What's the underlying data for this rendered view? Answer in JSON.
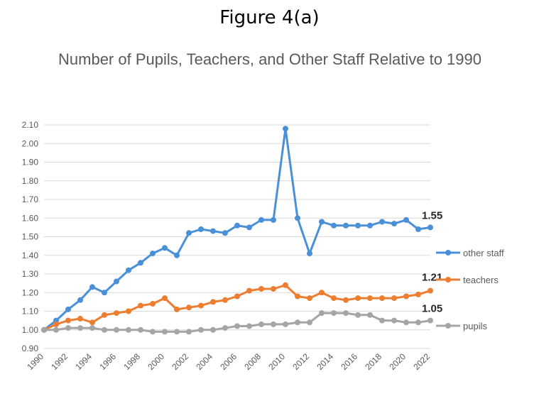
{
  "figure_label": "Figure 4(a)",
  "chart_data": {
    "type": "line",
    "title": "Number of Pupils, Teachers, and Other Staff Relative to 1990",
    "xlabel": "",
    "ylabel": "",
    "ylim": [
      0.9,
      2.1
    ],
    "y_ticks": [
      "0.90",
      "1.00",
      "1.10",
      "1.20",
      "1.30",
      "1.40",
      "1.50",
      "1.60",
      "1.70",
      "1.80",
      "1.90",
      "2.00",
      "2.10"
    ],
    "x": [
      1990,
      1991,
      1992,
      1993,
      1994,
      1995,
      1996,
      1997,
      1998,
      1999,
      2000,
      2001,
      2002,
      2003,
      2004,
      2005,
      2006,
      2007,
      2008,
      2009,
      2010,
      2011,
      2012,
      2013,
      2014,
      2015,
      2016,
      2017,
      2018,
      2019,
      2020,
      2021,
      2022
    ],
    "x_tick_labels": [
      "1990",
      "1992",
      "1994",
      "1996",
      "1998",
      "2000",
      "2002",
      "2004",
      "2006",
      "2008",
      "2010",
      "2012",
      "2014",
      "2016",
      "2018",
      "2020",
      "2022"
    ],
    "grid": true,
    "legend_position": "right",
    "series": [
      {
        "name": "other staff",
        "color": "#4a90d9",
        "end_label": "1.55",
        "values": [
          1.0,
          1.05,
          1.11,
          1.16,
          1.23,
          1.2,
          1.26,
          1.32,
          1.36,
          1.41,
          1.44,
          1.4,
          1.52,
          1.54,
          1.53,
          1.52,
          1.56,
          1.55,
          1.59,
          1.59,
          2.08,
          1.6,
          1.41,
          1.58,
          1.56,
          1.56,
          1.56,
          1.56,
          1.58,
          1.57,
          1.59,
          1.54,
          1.55
        ]
      },
      {
        "name": "teachers",
        "color": "#ed7d31",
        "end_label": "1.21",
        "values": [
          1.0,
          1.03,
          1.05,
          1.06,
          1.04,
          1.08,
          1.09,
          1.1,
          1.13,
          1.14,
          1.17,
          1.11,
          1.12,
          1.13,
          1.15,
          1.16,
          1.18,
          1.21,
          1.22,
          1.22,
          1.24,
          1.18,
          1.17,
          1.2,
          1.17,
          1.16,
          1.17,
          1.17,
          1.17,
          1.17,
          1.18,
          1.19,
          1.21
        ]
      },
      {
        "name": "pupils",
        "color": "#a5a5a5",
        "end_label": "1.05",
        "values": [
          1.0,
          1.0,
          1.01,
          1.01,
          1.01,
          1.0,
          1.0,
          1.0,
          1.0,
          0.99,
          0.99,
          0.99,
          0.99,
          1.0,
          1.0,
          1.01,
          1.02,
          1.02,
          1.03,
          1.03,
          1.03,
          1.04,
          1.04,
          1.09,
          1.09,
          1.09,
          1.08,
          1.08,
          1.05,
          1.05,
          1.04,
          1.04,
          1.05
        ]
      }
    ]
  }
}
